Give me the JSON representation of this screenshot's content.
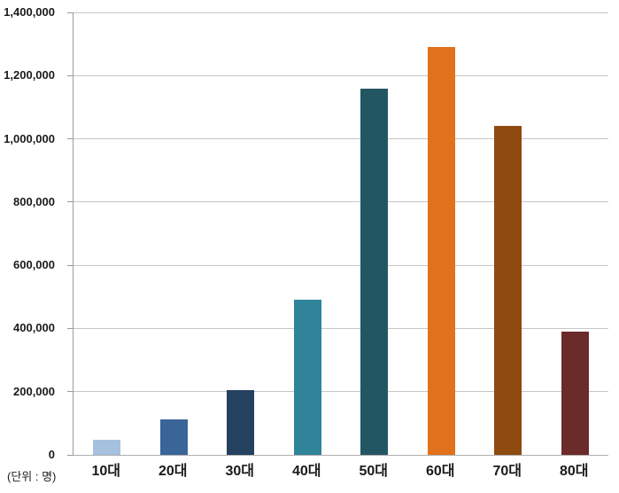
{
  "chart": {
    "unit_label": "(단위 : 명)"
  },
  "chart_data": {
    "type": "bar",
    "title": "",
    "xlabel": "",
    "ylabel": "",
    "unit_label": "(단위 : 명)",
    "categories": [
      "10대",
      "20대",
      "30대",
      "40대",
      "50대",
      "60대",
      "70대",
      "80대"
    ],
    "values": [
      48000,
      112000,
      205000,
      490000,
      1160000,
      1290000,
      1040000,
      390000
    ],
    "bar_colors": [
      "#a5c1de",
      "#3a6598",
      "#24415f",
      "#2f8499",
      "#235663",
      "#e2711b",
      "#8e4a0f",
      "#6b2b2b"
    ],
    "ylim": [
      0,
      1400000
    ],
    "y_ticks": [
      {
        "value": 0,
        "label": "0"
      },
      {
        "value": 200000,
        "label": "200,000"
      },
      {
        "value": 400000,
        "label": "400,000"
      },
      {
        "value": 600000,
        "label": "600,000"
      },
      {
        "value": 800000,
        "label": "800,000"
      },
      {
        "value": 1000000,
        "label": "1,000,000"
      },
      {
        "value": 1200000,
        "label": "1,200,000"
      },
      {
        "value": 1400000,
        "label": "1,400,000"
      }
    ],
    "grid": true,
    "legend": "none",
    "gridline_color": "#c6c6c6",
    "axis_color": "#9b9b9b"
  }
}
